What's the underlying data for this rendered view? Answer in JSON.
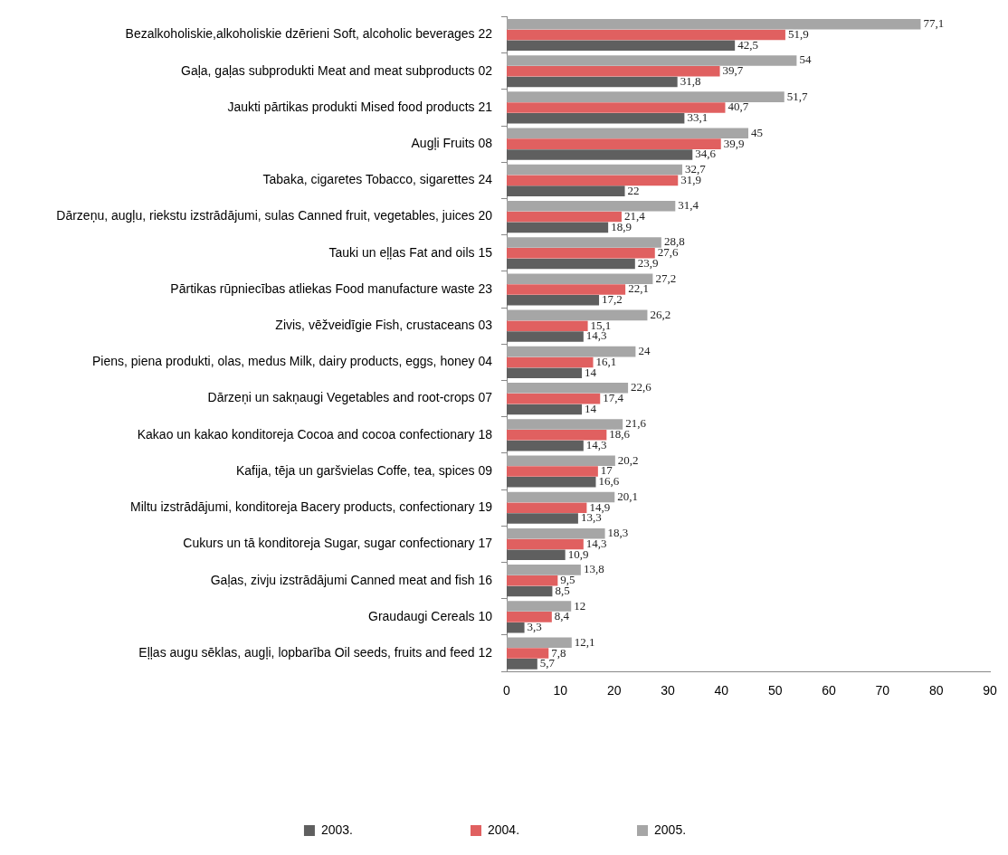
{
  "chart_data": {
    "type": "bar",
    "orientation": "horizontal",
    "categories": [
      "Bezalkoholiskie,alkoholiskie dzērieni Soft, alcoholic beverages 22",
      "Gaļa, gaļas subprodukti Meat and meat subproducts 02",
      "Jaukti pārtikas produkti Mised food products 21",
      "Augļi Fruits 08",
      "Tabaka, cigaretes Tobacco, sigarettes 24",
      "Dārzeņu, augļu, riekstu izstrādājumi, sulas Canned fruit, vegetables, juices 20",
      "Tauki un eļļas Fat and oils 15",
      "Pārtikas rūpniecības atliekas Food manufacture waste 23",
      "Zivis, vēžveidīgie Fish, crustaceans 03",
      "Piens, piena produkti, olas, medus Milk, dairy products, eggs, honey 04",
      "Dārzeņi un sakņaugi Vegetables and root-crops 07",
      "Kakao un kakao konditoreja Cocoa and cocoa confectionary 18",
      "Kafija, tēja un garšvielas Coffe, tea, spices 09",
      "Miltu izstrādājumi, konditoreja Bacery products, confectionary 19",
      "Cukurs un tā konditoreja Sugar, sugar confectionary 17",
      "Gaļas, zivju izstrādājumi Canned meat and fish 16",
      "Graudaugi Cereals 10",
      "Eļļas augu sēklas, augļi, lopbarība Oil seeds, fruits and feed 12"
    ],
    "series": [
      {
        "name": "2003.",
        "color": "#5f5f5f",
        "values": [
          42.5,
          31.8,
          33.1,
          34.6,
          22,
          18.9,
          23.9,
          17.2,
          14.3,
          14,
          14,
          14.3,
          16.6,
          13.3,
          10.9,
          8.5,
          3.3,
          5.7
        ],
        "value_labels": [
          "42,5",
          "31,8",
          "33,1",
          "34,6",
          "22",
          "18,9",
          "23,9",
          "17,2",
          "14,3",
          "14",
          "14",
          "14,3",
          "16,6",
          "13,3",
          "10,9",
          "8,5",
          "3,3",
          "5,7"
        ]
      },
      {
        "name": "2004.",
        "color": "#e06060",
        "values": [
          51.9,
          39.7,
          40.7,
          39.9,
          31.9,
          21.4,
          27.6,
          22.1,
          15.1,
          16.1,
          17.4,
          18.6,
          17,
          14.9,
          14.3,
          9.5,
          8.4,
          7.8
        ],
        "value_labels": [
          "51,9",
          "39,7",
          "40,7",
          "39,9",
          "31,9",
          "21,4",
          "27,6",
          "22,1",
          "15,1",
          "16,1",
          "17,4",
          "18,6",
          "17",
          "14,9",
          "14,3",
          "9,5",
          "8,4",
          "7,8"
        ]
      },
      {
        "name": "2005.",
        "color": "#a6a6a6",
        "values": [
          77.1,
          54,
          51.7,
          45,
          32.7,
          31.4,
          28.8,
          27.2,
          26.2,
          24,
          22.6,
          21.6,
          20.2,
          20.1,
          18.3,
          13.8,
          12,
          12.1
        ],
        "value_labels": [
          "77,1",
          "54",
          "51,7",
          "45",
          "32,7",
          "31,4",
          "28,8",
          "27,2",
          "26,2",
          "24",
          "22,6",
          "21,6",
          "20,2",
          "20,1",
          "18,3",
          "13,8",
          "12",
          "12,1"
        ]
      }
    ],
    "xlim": [
      0,
      90
    ],
    "xticks": [
      0,
      10,
      20,
      30,
      40,
      50,
      60,
      70,
      80,
      90
    ],
    "grid": false,
    "legend": "bottom"
  }
}
